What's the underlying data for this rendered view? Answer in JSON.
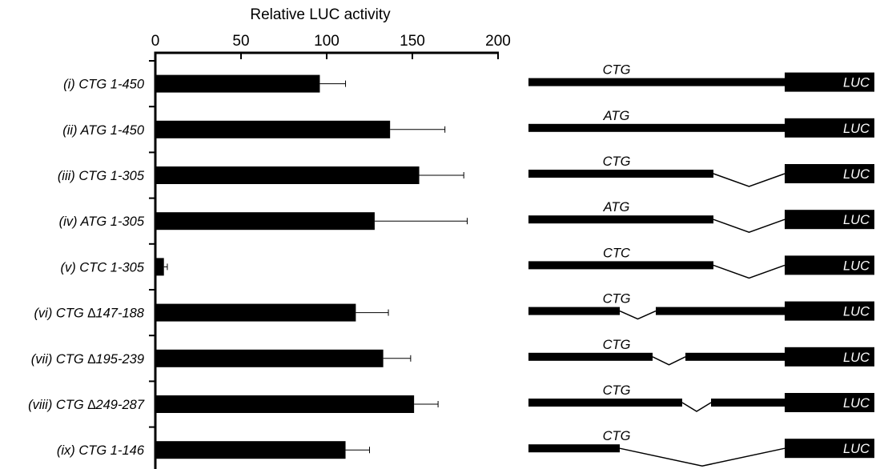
{
  "chart_data": {
    "type": "bar",
    "orientation": "horizontal",
    "title": "Relative LUC activity",
    "xlim": [
      0,
      200
    ],
    "xticks": [
      "0",
      "50",
      "100",
      "150",
      "200"
    ],
    "categories": [
      "(i) CTG 1-450",
      "(ii) ATG 1-450",
      "(iii) CTG 1-305",
      "(iv) ATG 1-305",
      "(v) CTC 1-305",
      "(vi) CTG ∆147-188",
      "(vii) CTG ∆195-239",
      "(viii) CTG ∆249-287",
      "(ix) CTG 1-146"
    ],
    "values": [
      96,
      137,
      154,
      128,
      5,
      117,
      133,
      151,
      111
    ],
    "errors": [
      15,
      32,
      26,
      54,
      2,
      19,
      16,
      14,
      14
    ],
    "bar_color": "#000000"
  },
  "diagram": {
    "reporter_label": "LUC",
    "constructs": [
      {
        "codon": "CTG"
      },
      {
        "codon": "ATG"
      },
      {
        "codon": "CTG"
      },
      {
        "codon": "ATG"
      },
      {
        "codon": "CTC"
      },
      {
        "codon": "CTG"
      },
      {
        "codon": "CTG"
      },
      {
        "codon": "CTG"
      },
      {
        "codon": "CTG"
      }
    ]
  }
}
